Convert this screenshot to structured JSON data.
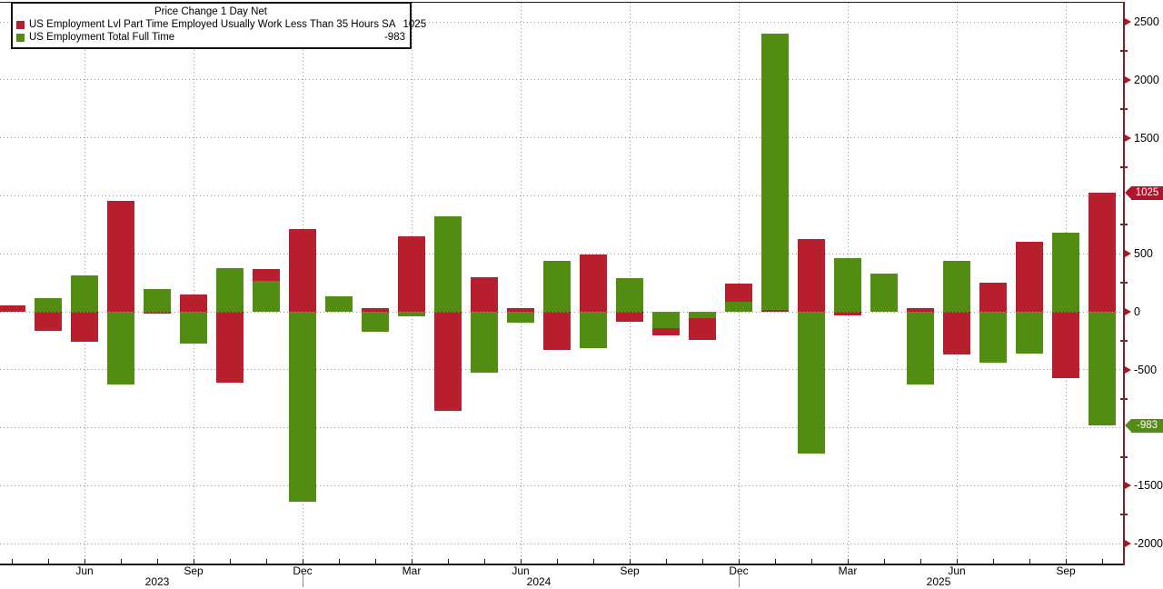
{
  "legend": {
    "title": "Price Change 1 Day Net",
    "series": [
      {
        "label": "US Employment Lvl Part Time Employed Usually Work Less Than 35 Hours SA",
        "value": "1025",
        "color": "#b71f2e"
      },
      {
        "label": "US Employment Total Full Time",
        "value": "-983",
        "color": "#538c12"
      }
    ]
  },
  "chart_data": {
    "type": "bar",
    "title": "Price Change 1 Day Net",
    "legend_position": "top-left",
    "grid": "dotted",
    "ylim": [
      -2250,
      2650
    ],
    "categories": [
      "Apr 2023",
      "May 2023",
      "Jun 2023",
      "Jul 2023",
      "Aug 2023",
      "Sep 2023",
      "Oct 2023",
      "Nov 2023",
      "Dec 2023",
      "Jan 2024",
      "Feb 2024",
      "Mar 2024",
      "Apr 2024",
      "May 2024",
      "Jun 2024",
      "Jul 2024",
      "Aug 2024",
      "Sep 2024",
      "Oct 2024",
      "Nov 2024",
      "Dec 2024",
      "Jan 2025",
      "Feb 2025",
      "Mar 2025",
      "Apr 2025",
      "May 2025",
      "Jun 2025",
      "Jul 2025",
      "Aug 2025",
      "Sep 2025",
      "Oct 2025"
    ],
    "series": [
      {
        "name": "US Employment Lvl Part Time Employed Usually Work Less Than 35 Hours SA",
        "color": "#b71f2e",
        "values": [
          55,
          -165,
          -260,
          960,
          -15,
          150,
          -615,
          370,
          715,
          0,
          35,
          650,
          -855,
          300,
          30,
          -330,
          490,
          -90,
          -200,
          -240,
          245,
          15,
          625,
          -35,
          0,
          30,
          -365,
          250,
          600,
          -570,
          1025
        ]
      },
      {
        "name": "US Employment Total Full Time",
        "color": "#538c12",
        "values": [
          0,
          115,
          310,
          -625,
          195,
          -275,
          375,
          265,
          -1640,
          135,
          -175,
          -40,
          825,
          -525,
          -95,
          440,
          -310,
          290,
          -140,
          -55,
          90,
          2400,
          -1220,
          460,
          330,
          -625,
          435,
          -440,
          -360,
          680,
          -983
        ]
      }
    ],
    "y_axis": {
      "major_tick_values": [
        2500,
        2000,
        1500,
        500,
        0,
        -500,
        -1500,
        -2000
      ],
      "minor_tick_values": [
        2250,
        1750,
        1250,
        750,
        250,
        -250,
        -750,
        -1250,
        -1750
      ],
      "last_value_flags": [
        {
          "label": "1025",
          "value": 1025,
          "color": "#b5122c"
        },
        {
          "label": "-983",
          "value": -983,
          "color": "#538c12"
        }
      ]
    },
    "x_axis": {
      "quarter_months": [
        "Mar",
        "Jun",
        "Sep",
        "Dec"
      ],
      "year_labels": [
        "2023",
        "2024",
        "2025"
      ]
    }
  },
  "colors": {
    "bar_red": "#b71f2e",
    "bar_green": "#538c12",
    "axis_spine": "#7a222b",
    "tick_arrow": "#a5162b",
    "gridline": "#969696",
    "axis_line": "#1a1a1a",
    "text": "#000000"
  }
}
